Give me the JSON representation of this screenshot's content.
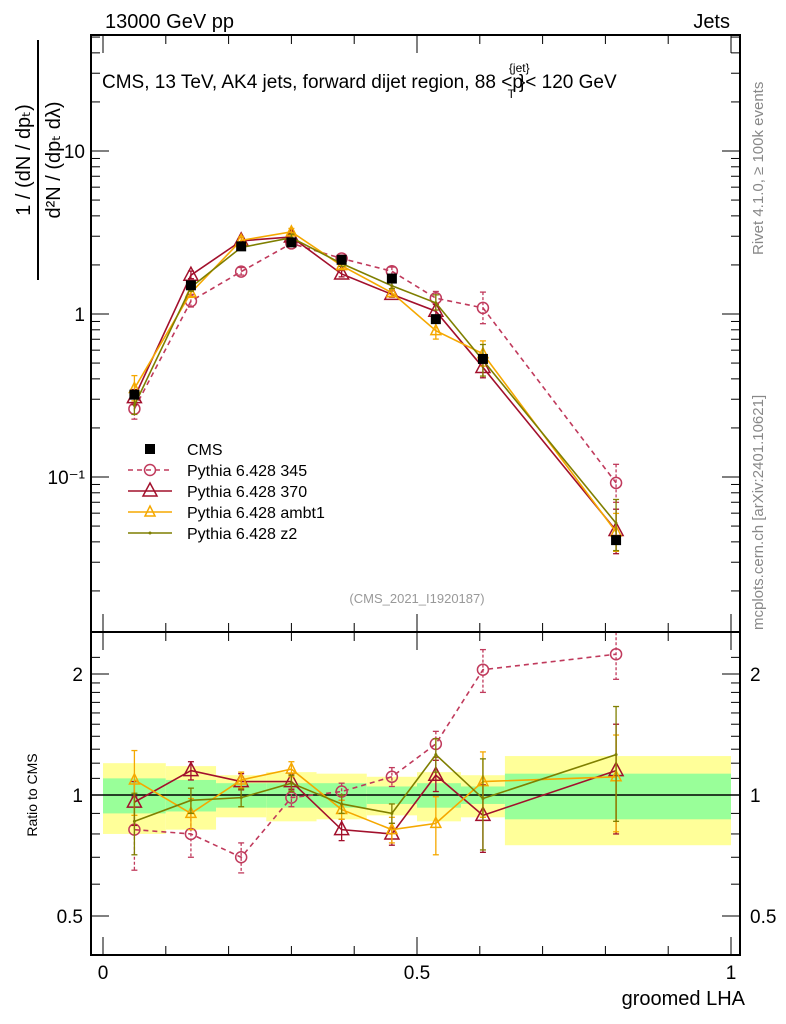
{
  "header": {
    "left": "13000 GeV pp",
    "right": "Jets"
  },
  "side_labels": {
    "rivet": "Rivet 4.1.0, ≥ 100k events",
    "mcplots": "mcplots.cern.ch [arXiv:2401.10621]"
  },
  "chart_data": [
    {
      "type": "line",
      "panel": "main",
      "title": "CMS, 13 TeV, AK4 jets, forward dijet region, 88 <p_T^{jet}< 120 GeV",
      "title_main": "CMS, 13 TeV, AK4 jets, forward dijet region, 88 <p",
      "title_sup": "{jet}",
      "title_sub": "T",
      "title_end": "}< 120 GeV",
      "ylabel": "1/(dN/dp_T) d²N/(dp_T dλ)",
      "ylabel_num": "1 / (dN / dpₜ)",
      "ylabel_den": "d²N / (dpₜ dλ)",
      "yscale": "log",
      "ylim": [
        0.012,
        50
      ],
      "yticks": [
        {
          "v": 0.1,
          "label": "10⁻¹"
        },
        {
          "v": 1,
          "label": "1"
        },
        {
          "v": 10,
          "label": "10"
        }
      ],
      "xlim": [
        0,
        1
      ],
      "analysis_id": "(CMS_2021_I1920187)",
      "legend_position": "middle-left",
      "bin_edges": [
        0,
        0.1,
        0.18,
        0.26,
        0.34,
        0.42,
        0.5,
        0.57,
        0.64,
        1.0
      ],
      "x": [
        0.05,
        0.14,
        0.22,
        0.3,
        0.38,
        0.46,
        0.53,
        0.605,
        0.817
      ],
      "data": {
        "name": "CMS",
        "values": [
          0.32,
          1.5,
          2.6,
          2.75,
          2.15,
          1.65,
          0.93,
          0.53,
          0.041
        ]
      },
      "series": [
        {
          "name": "Pythia 6.428 345",
          "color": "#c03a5c",
          "marker": "circle",
          "dashed": true,
          "values": [
            0.262,
            1.2,
            1.82,
            2.71,
            2.19,
            1.83,
            1.25,
            1.09,
            0.092
          ]
        },
        {
          "name": "Pythia 6.428 370",
          "color": "#a2102c",
          "marker": "triangle",
          "dashed": false,
          "values": [
            0.307,
            1.73,
            2.81,
            2.97,
            1.76,
            1.32,
            1.04,
            0.47,
            0.047
          ]
        },
        {
          "name": "Pythia 6.428 ambt1",
          "color": "#f5a800",
          "marker": "triangle-small",
          "dashed": false,
          "values": [
            0.349,
            1.35,
            2.83,
            3.19,
            1.98,
            1.35,
            0.79,
            0.57,
            0.046
          ]
        },
        {
          "name": "Pythia 6.428 z2",
          "color": "#7f7f00",
          "marker": "dot",
          "dashed": false,
          "values": [
            0.275,
            1.46,
            2.56,
            2.94,
            2.04,
            1.49,
            1.17,
            0.52,
            0.052
          ]
        }
      ]
    },
    {
      "type": "line",
      "panel": "ratio",
      "ylabel": "Ratio to CMS",
      "xlabel": "groomed LHA",
      "yscale": "log",
      "ylim": [
        0.42,
        2.4
      ],
      "yticks": [
        {
          "v": 0.5,
          "label": "0.5"
        },
        {
          "v": 1,
          "label": "1"
        },
        {
          "v": 2,
          "label": "2"
        }
      ],
      "xticks": [
        {
          "v": 0,
          "label": "0"
        },
        {
          "v": 0.5,
          "label": "0.5"
        },
        {
          "v": 1,
          "label": "1"
        }
      ],
      "band_green_halfwidth": [
        0.1,
        0.09,
        0.07,
        0.07,
        0.07,
        0.05,
        0.07,
        0.05,
        0.13
      ],
      "band_yellow_halfwidth": [
        0.2,
        0.18,
        0.12,
        0.14,
        0.13,
        0.11,
        0.14,
        0.12,
        0.25
      ],
      "ratios": [
        {
          "name": "Pythia 6.428 345",
          "values": [
            0.82,
            0.8,
            0.7,
            0.985,
            1.02,
            1.11,
            1.34,
            2.05,
            2.24
          ],
          "err": [
            0.17,
            0.1,
            0.06,
            0.05,
            0.05,
            0.06,
            0.1,
            0.25,
            0.3
          ]
        },
        {
          "name": "Pythia 6.428 370",
          "values": [
            0.96,
            1.15,
            1.08,
            1.08,
            0.82,
            0.8,
            1.12,
            0.89,
            1.15
          ],
          "err": [
            0.12,
            0.06,
            0.05,
            0.05,
            0.05,
            0.05,
            0.1,
            0.17,
            0.35
          ]
        },
        {
          "name": "Pythia 6.428 ambt1",
          "values": [
            1.09,
            0.9,
            1.09,
            1.16,
            0.92,
            0.82,
            0.85,
            1.08,
            1.11
          ],
          "err": [
            0.2,
            0.08,
            0.05,
            0.05,
            0.05,
            0.06,
            0.14,
            0.2,
            0.3
          ]
        },
        {
          "name": "Pythia 6.428 z2",
          "values": [
            0.86,
            0.97,
            0.985,
            1.07,
            0.95,
            0.9,
            1.26,
            0.98,
            1.26
          ],
          "err": [
            0.15,
            0.07,
            0.05,
            0.05,
            0.05,
            0.05,
            0.12,
            0.25,
            0.4
          ]
        }
      ]
    }
  ]
}
